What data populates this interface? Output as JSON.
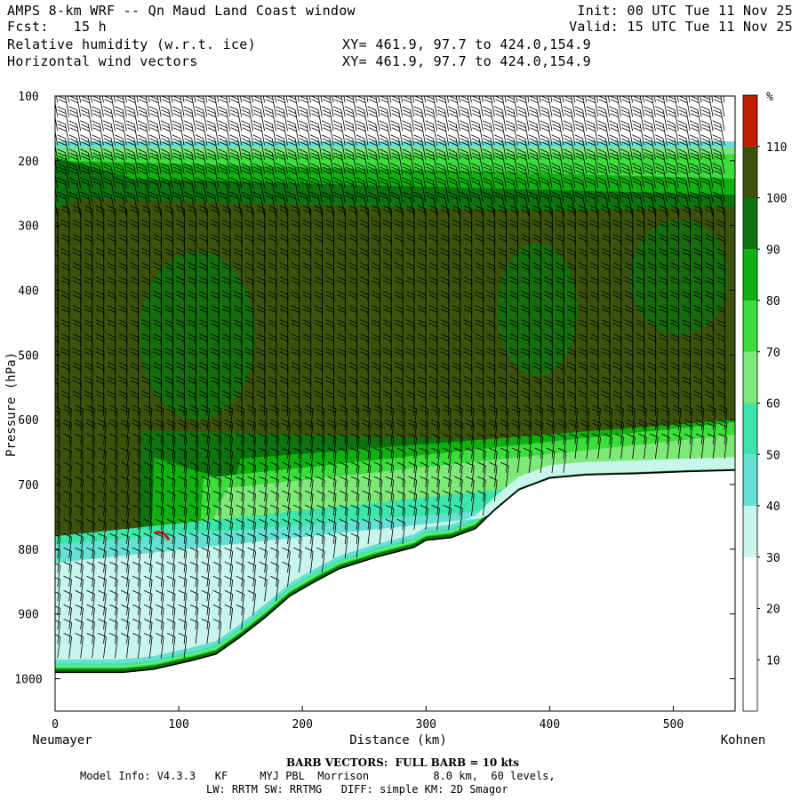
{
  "header": {
    "title": "AMPS 8-km WRF -- Qn Maud Land Coast window",
    "fcst": "Fcst:   15 h",
    "field1": "Relative humidity (w.r.t. ice)",
    "field2": "Horizontal wind vectors",
    "xy1": "XY= 461.9, 97.7 to 424.0,154.9",
    "xy2": "XY= 461.9, 97.7 to 424.0,154.9",
    "init": "Init: 00 UTC Tue 11 Nov 25",
    "valid": "Valid: 15 UTC Tue 11 Nov 25"
  },
  "footer": {
    "barb_note": "BARB VECTORS:  FULL BARB = 10 kts",
    "model_line1": "Model Info: V4.3.3   KF     MYJ PBL  Morrison          8.0 km,  60 levels,",
    "model_line2": "LW: RRTM SW: RRTMG   DIFF: simple KM: 2D Smagor"
  },
  "colors": {
    "band_0_30": "#ffffff",
    "band_30_40": "#c8f5ec",
    "band_40_50": "#66e0d2",
    "band_50_60": "#3ce6aa",
    "band_60_70": "#7ee878",
    "band_70_80": "#3cdd3c",
    "band_80_90": "#10b010",
    "band_90_100": "#0e720e",
    "band_100_110": "#3c520c",
    "band_110_plus": "#c01e00",
    "terrain_line": "#000000"
  },
  "chart_data": {
    "type": "heatmap",
    "title": "Relative humidity (w.r.t. ice) cross-section with horizontal wind barbs",
    "xlabel": "Distance (km)",
    "ylabel": "Pressure (hPa)",
    "xlim": [
      0,
      550
    ],
    "ylim": [
      1050,
      100
    ],
    "x_ticks": [
      "0",
      "100",
      "200",
      "300",
      "400",
      "500"
    ],
    "y_ticks": [
      "100",
      "200",
      "300",
      "400",
      "500",
      "600",
      "700",
      "800",
      "900",
      "1000"
    ],
    "x_start_label": "Neumayer",
    "x_end_label": "Kohnen",
    "colorbar": {
      "unit": "%",
      "labels": [
        "10",
        "20",
        "30",
        "40",
        "50",
        "60",
        "70",
        "80",
        "90",
        "100",
        "110"
      ]
    },
    "surface_profile_km_hPa": [
      [
        0,
        990
      ],
      [
        55,
        990
      ],
      [
        80,
        985
      ],
      [
        110,
        972
      ],
      [
        130,
        962
      ],
      [
        150,
        935
      ],
      [
        170,
        905
      ],
      [
        190,
        872
      ],
      [
        210,
        850
      ],
      [
        230,
        830
      ],
      [
        260,
        812
      ],
      [
        290,
        797
      ],
      [
        300,
        786
      ],
      [
        320,
        782
      ],
      [
        340,
        768
      ],
      [
        355,
        740
      ],
      [
        375,
        708
      ],
      [
        400,
        690
      ],
      [
        430,
        685
      ],
      [
        470,
        683
      ],
      [
        510,
        680
      ],
      [
        550,
        678
      ]
    ],
    "rh_layers_percent": [
      {
        "range": "100-110",
        "description": "broad saturated layer from ~230 to ~640 hPa"
      },
      {
        "range": "70-90",
        "description": "moist band near 180-230 hPa"
      },
      {
        "range": "30-60",
        "description": "drier boundary layer above terrain"
      },
      {
        "range": ">110",
        "description": "small patch near 90 km, 780 hPa"
      }
    ],
    "barb_units": "kts",
    "full_barb_kts": 10
  }
}
